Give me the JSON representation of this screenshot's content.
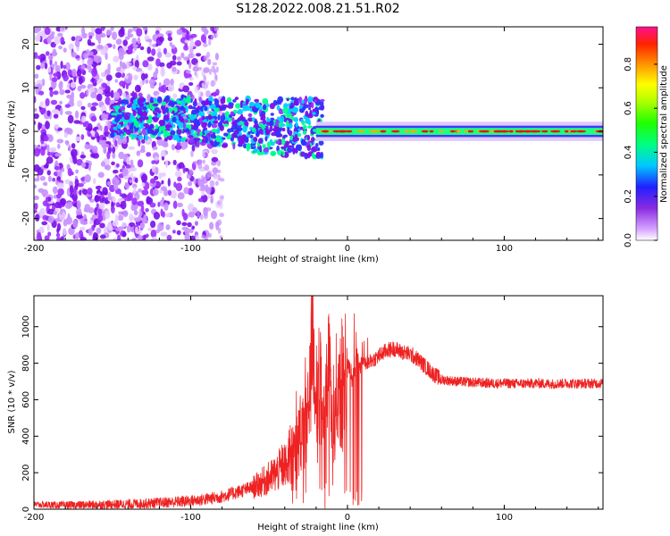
{
  "title": "S128.2022.008.21.51.R02",
  "chart_data": [
    {
      "type": "heatmap",
      "xlabel": "Height of straight line (km)",
      "ylabel": "Frequency (Hz)",
      "xlim": [
        -200,
        163
      ],
      "ylim": [
        -25,
        24
      ],
      "xticks": [
        -200,
        -100,
        0,
        100
      ],
      "yticks": [
        -20,
        -10,
        0,
        10,
        20
      ],
      "colorbar": {
        "label": "Normalized spectral amplitude",
        "range": [
          0,
          0.97
        ],
        "ticks": [
          0.0,
          0.2,
          0.4,
          0.6,
          0.8
        ],
        "tick_labels": [
          "0.0",
          "0.2",
          "0.4",
          "0.6",
          "0.8"
        ]
      },
      "description_points": {
        "noise_region_x": [
          -200,
          -85
        ],
        "carrier_spread_x": [
          -150,
          -20
        ],
        "carrier_frequency_hz": 0
      },
      "grid": false
    },
    {
      "type": "line",
      "xlabel": "Height of straight line (km)",
      "ylabel": "SNR (10 * v/v)",
      "xlim": [
        -200,
        163
      ],
      "ylim": [
        0,
        1170
      ],
      "xticks": [
        -200,
        -100,
        0,
        100
      ],
      "yticks": [
        0,
        200,
        400,
        600,
        800,
        1000
      ],
      "color": "#ee2222",
      "series": [
        {
          "x": [
            -200,
            -180,
            -160,
            -140,
            -120,
            -100,
            -90,
            -80,
            -70,
            -60,
            -50,
            -45,
            -40,
            -35,
            -30,
            -25,
            -22,
            -20,
            -18,
            -15,
            -12,
            -10,
            -8,
            -5,
            -2,
            0,
            3,
            6,
            8,
            10,
            12,
            15,
            20,
            25,
            30,
            35,
            40,
            45,
            50,
            55,
            60,
            70,
            80,
            90,
            100,
            110,
            120,
            130,
            140,
            150,
            163
          ],
          "y": [
            25,
            22,
            25,
            28,
            35,
            45,
            55,
            70,
            95,
            120,
            170,
            200,
            250,
            320,
            380,
            500,
            1170,
            420,
            700,
            450,
            860,
            400,
            600,
            700,
            650,
            820,
            700,
            840,
            760,
            830,
            800,
            810,
            840,
            870,
            880,
            860,
            850,
            820,
            780,
            740,
            710,
            700,
            695,
            690,
            690,
            688,
            690,
            687,
            690,
            688,
            690
          ]
        }
      ],
      "grid": false
    }
  ]
}
